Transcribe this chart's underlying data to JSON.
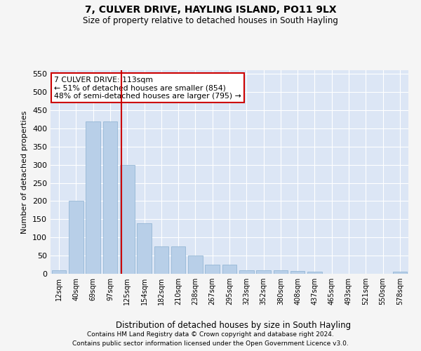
{
  "title": "7, CULVER DRIVE, HAYLING ISLAND, PO11 9LX",
  "subtitle": "Size of property relative to detached houses in South Hayling",
  "xlabel": "Distribution of detached houses by size in South Hayling",
  "ylabel": "Number of detached properties",
  "categories": [
    "12sqm",
    "40sqm",
    "69sqm",
    "97sqm",
    "125sqm",
    "154sqm",
    "182sqm",
    "210sqm",
    "238sqm",
    "267sqm",
    "295sqm",
    "323sqm",
    "352sqm",
    "380sqm",
    "408sqm",
    "437sqm",
    "465sqm",
    "493sqm",
    "521sqm",
    "550sqm",
    "578sqm"
  ],
  "values": [
    10,
    200,
    420,
    420,
    300,
    140,
    75,
    75,
    50,
    25,
    25,
    10,
    10,
    10,
    8,
    5,
    0,
    0,
    0,
    0,
    5
  ],
  "bar_color": "#b8cfe8",
  "bar_edge_color": "#8ab0d0",
  "plot_bg_color": "#dce6f5",
  "fig_bg_color": "#f5f5f5",
  "grid_color": "#ffffff",
  "vline_x": 3.65,
  "vline_color": "#cc0000",
  "annotation_text": "7 CULVER DRIVE: 113sqm\n← 51% of detached houses are smaller (854)\n48% of semi-detached houses are larger (795) →",
  "annotation_box_facecolor": "#ffffff",
  "annotation_box_edgecolor": "#cc0000",
  "ylim": [
    0,
    560
  ],
  "yticks": [
    0,
    50,
    100,
    150,
    200,
    250,
    300,
    350,
    400,
    450,
    500,
    550
  ],
  "footnote1": "Contains HM Land Registry data © Crown copyright and database right 2024.",
  "footnote2": "Contains public sector information licensed under the Open Government Licence v3.0."
}
